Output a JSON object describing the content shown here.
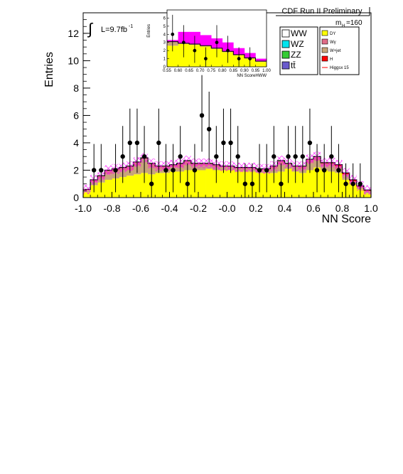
{
  "chart_data": [
    {
      "type": "bar",
      "title": "CDF Run II Preliminary",
      "xlabel": "NN Score",
      "ylabel": "Entries",
      "xlim": [
        -1.0,
        1.0
      ],
      "ylim": [
        0,
        13.5
      ],
      "x_ticks": [
        "-1.0",
        "-0.8",
        "-0.6",
        "-0.4",
        "-0.2",
        "-0.0",
        "0.2",
        "0.4",
        "0.6",
        "0.8",
        "1.0"
      ],
      "y_ticks": [
        "0",
        "2",
        "4",
        "6",
        "8",
        "10",
        "12"
      ],
      "lumi_label": "L=9.7fb",
      "lumi_exp": "-1",
      "mass_label": "m",
      "mass_sub": "H",
      "mass_value": "=160",
      "n_bins": 40,
      "bin_edges": [
        -1.0,
        1.0
      ],
      "series": [
        {
          "name": "DY",
          "color": "#ffff00",
          "values": [
            0.4,
            0.9,
            1.1,
            1.3,
            1.4,
            1.5,
            1.6,
            1.7,
            1.8,
            1.7,
            1.8,
            1.8,
            1.9,
            1.9,
            2.0,
            2.0,
            2.0,
            2.1,
            2.0,
            2.0,
            2.0,
            1.9,
            1.9,
            1.9,
            1.8,
            1.8,
            1.8,
            1.9,
            2.1,
            1.9,
            1.8,
            2.0,
            2.2,
            2.0,
            1.9,
            1.8,
            1.3,
            1.0,
            0.6,
            0.3
          ]
        },
        {
          "name": "W+jet",
          "color": "#c8a57a",
          "values": [
            0.1,
            0.2,
            0.3,
            0.4,
            0.5,
            0.5,
            0.4,
            0.6,
            1.0,
            0.5,
            0.3,
            0.3,
            0.3,
            0.3,
            0.4,
            0.3,
            0.3,
            0.2,
            0.2,
            0.2,
            0.2,
            0.2,
            0.2,
            0.2,
            0.2,
            0.2,
            0.3,
            0.5,
            0.3,
            0.3,
            0.3,
            0.5,
            0.5,
            0.3,
            0.4,
            0.3,
            0.3,
            0.1,
            0.1,
            0.1
          ]
        },
        {
          "name": "Wγ",
          "color": "#e06d88",
          "values": [
            0.1,
            0.2,
            0.2,
            0.3,
            0.2,
            0.2,
            0.3,
            0.3,
            0.1,
            0.3,
            0.2,
            0.2,
            0.2,
            0.3,
            0.3,
            0.2,
            0.2,
            0.2,
            0.2,
            0.1,
            0.1,
            0.1,
            0.1,
            0.1,
            0.1,
            0.1,
            0.2,
            0.3,
            0.1,
            0.1,
            0.2,
            0.3,
            0.3,
            0.2,
            0.2,
            0.2,
            0.1,
            0.1,
            0.1,
            0.1
          ]
        },
        {
          "name": "Higgsx 15",
          "color": "#ff0000",
          "values": [
            0.0,
            0.0,
            0.0,
            0.0,
            0.0,
            0.0,
            0.0,
            0.0,
            0.0,
            0.0,
            0.0,
            0.0,
            0.0,
            0.0,
            0.0,
            0.0,
            0.0,
            0.0,
            0.0,
            0.0,
            0.0,
            0.0,
            0.0,
            0.0,
            0.0,
            0.0,
            0.0,
            0.0,
            0.0,
            0.0,
            0.0,
            0.0,
            0.0,
            0.05,
            0.05,
            0.1,
            0.1,
            0.1,
            0.05,
            0.05
          ]
        }
      ],
      "total_uncertainty": 0.35,
      "data_points": {
        "x": [
          -0.925,
          -0.875,
          -0.775,
          -0.725,
          -0.675,
          -0.625,
          -0.575,
          -0.525,
          -0.475,
          -0.425,
          -0.375,
          -0.325,
          -0.275,
          -0.225,
          -0.175,
          -0.125,
          -0.075,
          -0.025,
          0.025,
          0.075,
          0.125,
          0.175,
          0.225,
          0.275,
          0.325,
          0.375,
          0.425,
          0.475,
          0.525,
          0.575,
          0.625,
          0.675,
          0.725,
          0.775,
          0.825,
          0.875,
          0.925
        ],
        "y": [
          2,
          2,
          2,
          3,
          4,
          4,
          3,
          1,
          4,
          2,
          2,
          3,
          1,
          2,
          6,
          5,
          3,
          4,
          4,
          3,
          1,
          1,
          2,
          2,
          3,
          1,
          3,
          3,
          3,
          4,
          2,
          2,
          3,
          2,
          1,
          1,
          1
        ]
      }
    },
    {
      "type": "bar",
      "title": "",
      "xlabel": "NN ScoreHWW",
      "ylabel": "Entries",
      "xlim": [
        0.55,
        1.0
      ],
      "ylim": [
        0,
        7
      ],
      "x_ticks": [
        "0.55",
        "0.60",
        "0.65",
        "0.70",
        "0.75",
        "0.80",
        "0.85",
        "0.90",
        "0.95",
        "1.00"
      ],
      "y_ticks": [
        "0",
        "1",
        "2",
        "3",
        "4",
        "5",
        "6"
      ],
      "n_bins": 9,
      "series": [
        {
          "name": "DY",
          "color": "#ffff00",
          "values": [
            2.6,
            2.8,
            2.7,
            2.5,
            2.2,
            1.8,
            1.4,
            1.0,
            0.6
          ]
        },
        {
          "name": "W+jet",
          "color": "#c8a57a",
          "values": [
            0.5,
            0.1,
            0.1,
            0.1,
            0.1,
            0.1,
            0.1,
            0.1,
            0.1
          ]
        },
        {
          "name": "Higgs",
          "color": "#ff00ff",
          "values": [
            0.2,
            1.4,
            1.5,
            1.3,
            1.2,
            1.1,
            0.8,
            0.6,
            0.3
          ]
        }
      ],
      "data_points": {
        "x": [
          0.575,
          0.625,
          0.675,
          0.725,
          0.775,
          0.825,
          0.875,
          0.925
        ],
        "y": [
          4,
          3,
          2,
          1,
          3,
          2,
          1,
          1
        ]
      }
    }
  ],
  "legend": {
    "items": [
      {
        "label": "WW",
        "color": "#ffffff"
      },
      {
        "label": "WZ",
        "color": "#00e5ee"
      },
      {
        "label": "ZZ",
        "color": "#33cc33"
      },
      {
        "label": "tt̄",
        "color": "#6a5acd"
      },
      {
        "label": "DY",
        "color": "#ffff00"
      },
      {
        "label": "Wγ",
        "color": "#e06d88"
      },
      {
        "label": "W+jet",
        "color": "#c8a57a"
      },
      {
        "label": "H",
        "color": "#ff0000"
      },
      {
        "label": "Higgsx 15",
        "color": "#ff0000"
      }
    ]
  }
}
